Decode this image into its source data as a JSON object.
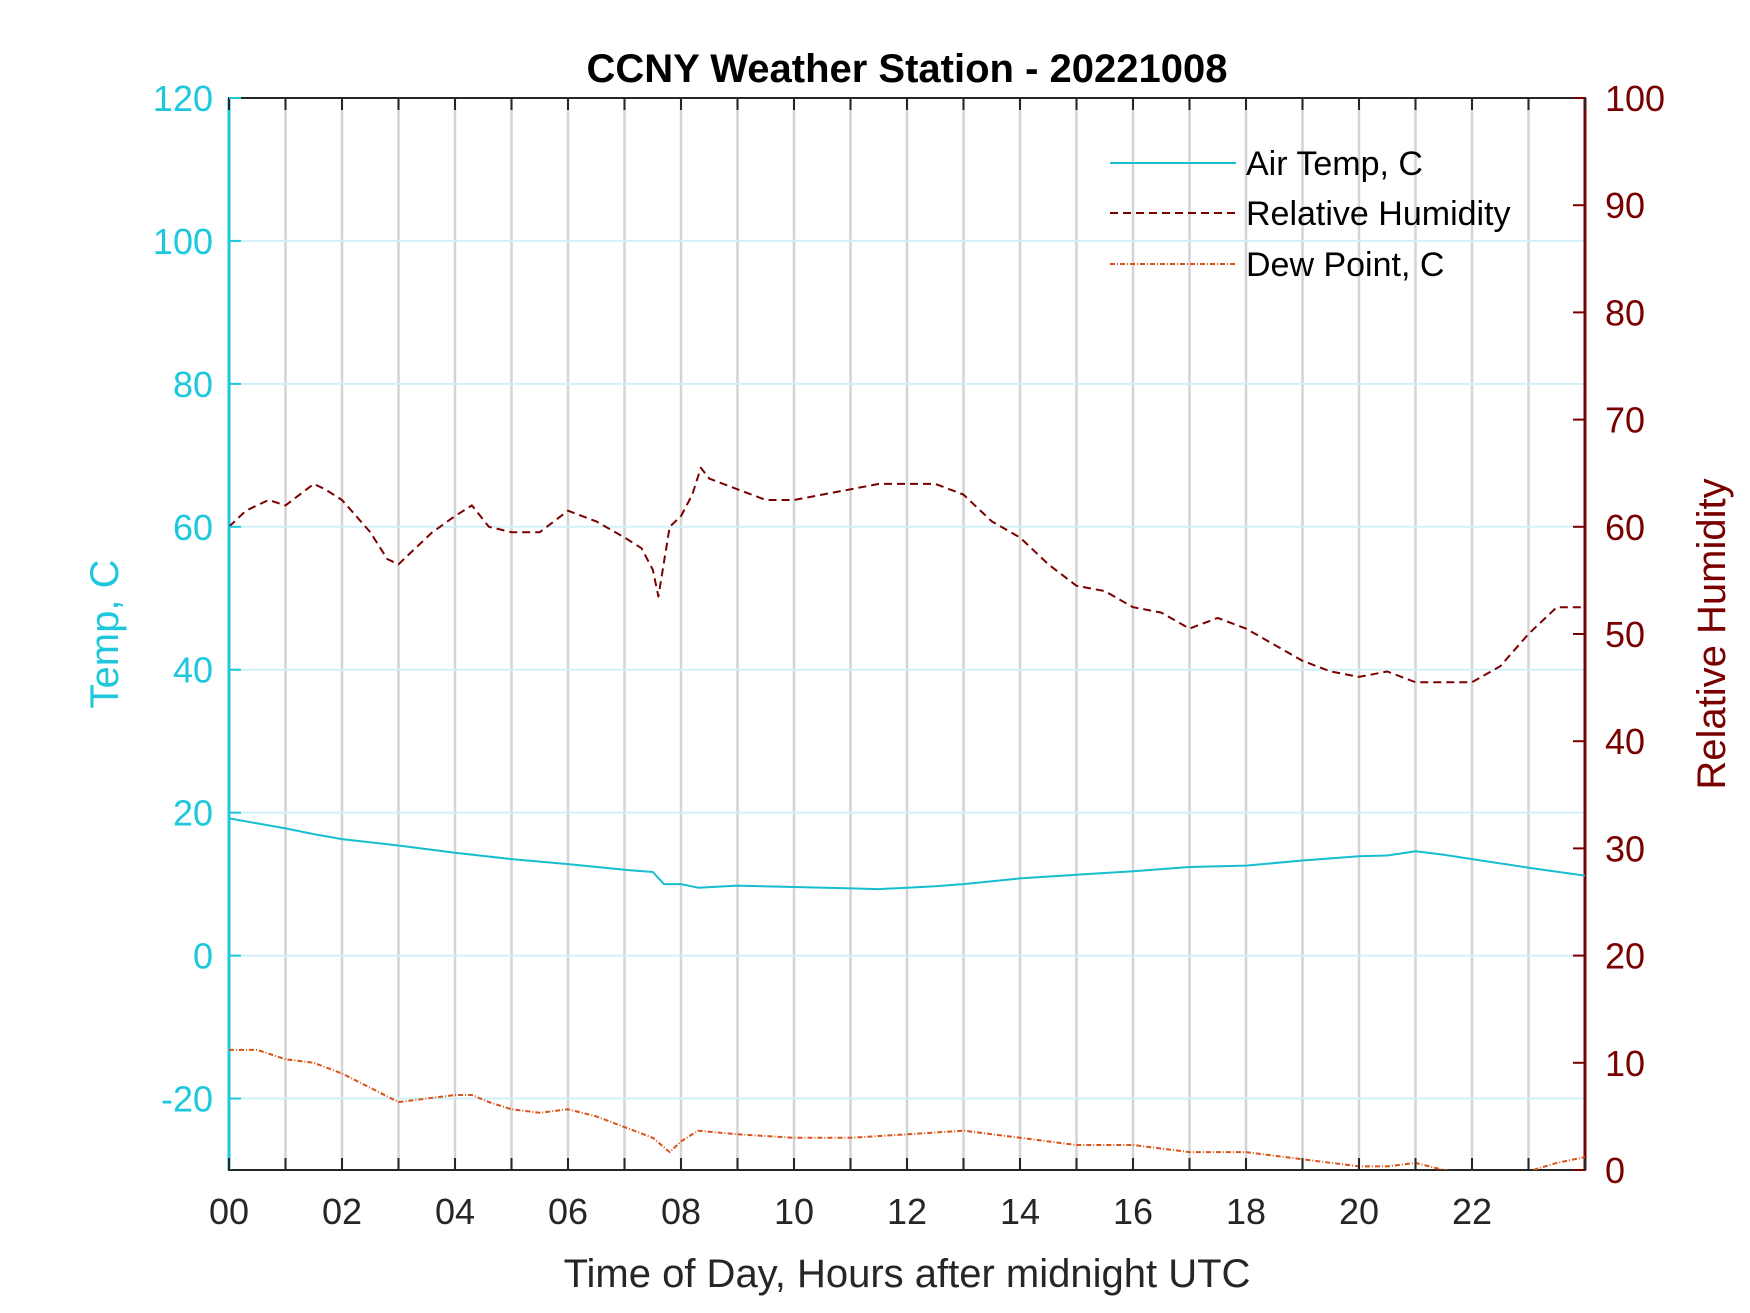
{
  "chart_data": {
    "type": "line",
    "title": "CCNY Weather Station - 20221008",
    "xlabel": "Time of Day, Hours after midnight UTC",
    "ylabel_left": "Temp, C",
    "ylabel_right": "Relative Humidity",
    "xlim": [
      0,
      24
    ],
    "ylim_left": [
      -30,
      120
    ],
    "ylim_right": [
      0,
      100
    ],
    "x_ticks": [
      0,
      2,
      4,
      6,
      8,
      10,
      12,
      14,
      16,
      18,
      20,
      22
    ],
    "x_tick_labels": [
      "00",
      "02",
      "04",
      "06",
      "08",
      "10",
      "12",
      "14",
      "16",
      "18",
      "20",
      "22"
    ],
    "y_left_ticks": [
      -20,
      0,
      20,
      40,
      60,
      80,
      100,
      120
    ],
    "y_left_tick_labels": [
      "-20",
      "0",
      "20",
      "40",
      "60",
      "80",
      "100",
      "120"
    ],
    "y_right_ticks": [
      0,
      10,
      20,
      30,
      40,
      50,
      60,
      70,
      80,
      90,
      100
    ],
    "y_right_tick_labels": [
      "0",
      "10",
      "20",
      "30",
      "40",
      "50",
      "60",
      "70",
      "80",
      "90",
      "100"
    ],
    "grid": true,
    "legend_position": "top-right",
    "colors": {
      "left_axis": "#1ec8dc",
      "right_axis": "#7a0000",
      "air_temp": "#17becf",
      "humidity": "#7a0000",
      "dew_point": "#d95319"
    },
    "series": [
      {
        "name": "Air Temp, C",
        "axis": "left",
        "x": [
          0,
          0.5,
          1,
          1.5,
          2,
          3,
          4,
          5,
          6,
          7,
          7.5,
          7.7,
          8,
          8.3,
          9,
          10,
          11,
          11.5,
          12,
          12.5,
          13,
          14,
          15,
          16,
          17,
          18,
          19,
          20,
          20.5,
          21,
          21.5,
          22,
          23,
          24
        ],
        "y": [
          19.2,
          18.5,
          17.8,
          17,
          16.3,
          15.4,
          14.4,
          13.5,
          12.8,
          12,
          11.7,
          10,
          10,
          9.5,
          9.8,
          9.6,
          9.4,
          9.3,
          9.5,
          9.7,
          10,
          10.8,
          11.3,
          11.8,
          12.4,
          12.6,
          13.3,
          13.9,
          14,
          14.6,
          14.1,
          13.5,
          12.3,
          11.2
        ]
      },
      {
        "name": "Relative Humidity",
        "axis": "right",
        "x": [
          0,
          0.3,
          0.7,
          1,
          1.5,
          1.7,
          2,
          2.5,
          2.8,
          3,
          3.3,
          3.6,
          4,
          4.3,
          4.6,
          5,
          5.5,
          6,
          6.5,
          7,
          7.3,
          7.5,
          7.6,
          7.8,
          8,
          8.2,
          8.35,
          8.5,
          9,
          9.5,
          10,
          10.5,
          11,
          11.5,
          12,
          12.5,
          13,
          13.5,
          14,
          14.5,
          15,
          15.5,
          16,
          16.5,
          17,
          17.5,
          18,
          18.5,
          19,
          19.5,
          20,
          20.5,
          21,
          21.5,
          22,
          22.5,
          23,
          23.5,
          24
        ],
        "y": [
          60,
          61.5,
          62.5,
          62,
          64,
          63.5,
          62.5,
          59.5,
          57,
          56.5,
          58,
          59.5,
          61,
          62,
          60,
          59.5,
          59.5,
          61.5,
          60.5,
          59,
          58,
          56,
          53.5,
          60,
          61,
          63,
          65.5,
          64.5,
          63.5,
          62.5,
          62.5,
          63,
          63.5,
          64,
          64,
          64,
          63,
          60.5,
          59,
          56.5,
          54.5,
          54,
          52.5,
          52,
          50.5,
          51.5,
          50.5,
          49,
          47.5,
          46.5,
          46,
          46.5,
          45.5,
          45.5,
          45.5,
          47,
          50,
          52.5,
          52.5
        ]
      },
      {
        "name": "Dew Point, C",
        "axis": "left",
        "x": [
          0,
          0.5,
          1,
          1.5,
          2,
          2.5,
          3,
          3.5,
          4,
          4.3,
          4.6,
          5,
          5.5,
          6,
          6.5,
          7,
          7.5,
          7.8,
          8,
          8.3,
          9,
          10,
          11,
          12,
          13,
          14,
          15,
          16,
          17,
          18,
          19,
          19.5,
          20,
          20.5,
          21,
          21.5,
          22,
          22.5,
          23,
          23.5,
          24
        ],
        "y": [
          -13.2,
          -13.2,
          -14.5,
          -15,
          -16.5,
          -18.5,
          -20.5,
          -20,
          -19.5,
          -19.5,
          -20.5,
          -21.5,
          -22,
          -21.5,
          -22.5,
          -24,
          -25.5,
          -27.5,
          -26,
          -24.5,
          -25,
          -25.5,
          -25.5,
          -25,
          -24.5,
          -25.5,
          -26.5,
          -26.5,
          -27.5,
          -27.5,
          -28.5,
          -29,
          -29.5,
          -29.5,
          -29,
          -30,
          -30.5,
          -30.5,
          -30.2,
          -29,
          -28.2
        ]
      }
    ]
  }
}
